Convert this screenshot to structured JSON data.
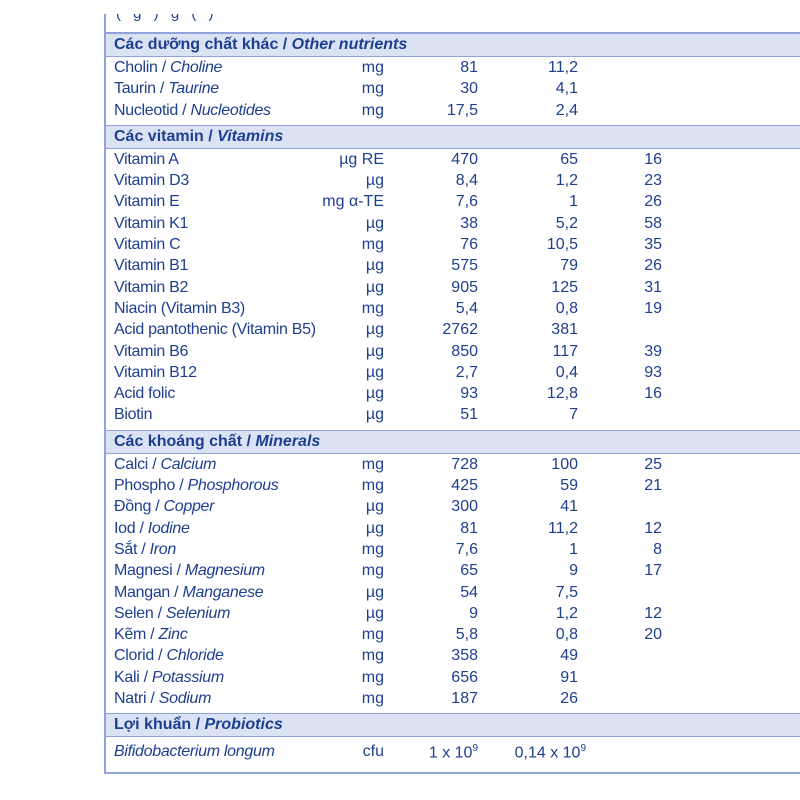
{
  "sections": {
    "other": {
      "title_vi": "Các dưỡng chất khác / ",
      "title_en": "Other nutrients",
      "rows": [
        {
          "vi": "Cholin / ",
          "en": "Choline",
          "unit": "mg",
          "v1": "81",
          "v2": "11,2",
          "v3": ""
        },
        {
          "vi": "Taurin / ",
          "en": "Taurine",
          "unit": "mg",
          "v1": "30",
          "v2": "4,1",
          "v3": ""
        },
        {
          "vi": "Nucleotid / ",
          "en": "Nucleotides",
          "unit": "mg",
          "v1": "17,5",
          "v2": "2,4",
          "v3": ""
        }
      ]
    },
    "vitamins": {
      "title_vi": "Các vitamin / ",
      "title_en": "Vitamins",
      "rows": [
        {
          "vi": "Vitamin A",
          "en": "",
          "unit": "µg RE",
          "v1": "470",
          "v2": "65",
          "v3": "16"
        },
        {
          "vi": "Vitamin D3",
          "en": "",
          "unit": "µg",
          "v1": "8,4",
          "v2": "1,2",
          "v3": "23"
        },
        {
          "vi": "Vitamin E",
          "en": "",
          "unit": "mg α-TE",
          "v1": "7,6",
          "v2": "1",
          "v3": "26"
        },
        {
          "vi": "Vitamin K1",
          "en": "",
          "unit": "µg",
          "v1": "38",
          "v2": "5,2",
          "v3": "58"
        },
        {
          "vi": "Vitamin C",
          "en": "",
          "unit": "mg",
          "v1": "76",
          "v2": "10,5",
          "v3": "35"
        },
        {
          "vi": "Vitamin B1",
          "en": "",
          "unit": "µg",
          "v1": "575",
          "v2": "79",
          "v3": "26"
        },
        {
          "vi": "Vitamin B2",
          "en": "",
          "unit": "µg",
          "v1": "905",
          "v2": "125",
          "v3": "31"
        },
        {
          "vi": "Niacin (Vitamin B3)",
          "en": "",
          "unit": "mg",
          "v1": "5,4",
          "v2": "0,8",
          "v3": "19"
        },
        {
          "vi": "Acid pantothenic (Vitamin B5)",
          "en": "",
          "unit": "µg",
          "v1": "2762",
          "v2": "381",
          "v3": ""
        },
        {
          "vi": "Vitamin B6",
          "en": "",
          "unit": "µg",
          "v1": "850",
          "v2": "117",
          "v3": "39"
        },
        {
          "vi": "Vitamin B12",
          "en": "",
          "unit": "µg",
          "v1": "2,7",
          "v2": "0,4",
          "v3": "93"
        },
        {
          "vi": "Acid folic",
          "en": "",
          "unit": "µg",
          "v1": "93",
          "v2": "12,8",
          "v3": "16"
        },
        {
          "vi": "Biotin",
          "en": "",
          "unit": "µg",
          "v1": "51",
          "v2": "7",
          "v3": ""
        }
      ]
    },
    "minerals": {
      "title_vi": "Các khoáng chất / ",
      "title_en": "Minerals",
      "rows": [
        {
          "vi": "Calci / ",
          "en": "Calcium",
          "unit": "mg",
          "v1": "728",
          "v2": "100",
          "v3": "25"
        },
        {
          "vi": "Phospho / ",
          "en": "Phosphorous",
          "unit": "mg",
          "v1": "425",
          "v2": "59",
          "v3": "21"
        },
        {
          "vi": "Đồng / ",
          "en": "Copper",
          "unit": "µg",
          "v1": "300",
          "v2": "41",
          "v3": ""
        },
        {
          "vi": "Iod / ",
          "en": "Iodine",
          "unit": "µg",
          "v1": "81",
          "v2": "11,2",
          "v3": "12"
        },
        {
          "vi": "Sắt / ",
          "en": "Iron",
          "unit": "mg",
          "v1": "7,6",
          "v2": "1",
          "v3": "8"
        },
        {
          "vi": "Magnesi / ",
          "en": "Magnesium",
          "unit": "mg",
          "v1": "65",
          "v2": "9",
          "v3": "17"
        },
        {
          "vi": "Mangan / ",
          "en": "Manganese",
          "unit": "µg",
          "v1": "54",
          "v2": "7,5",
          "v3": ""
        },
        {
          "vi": "Selen / ",
          "en": "Selenium",
          "unit": "µg",
          "v1": "9",
          "v2": "1,2",
          "v3": "12"
        },
        {
          "vi": "Kẽm / ",
          "en": "Zinc",
          "unit": "mg",
          "v1": "5,8",
          "v2": "0,8",
          "v3": "20"
        },
        {
          "vi": "Clorid / ",
          "en": "Chloride",
          "unit": "mg",
          "v1": "358",
          "v2": "49",
          "v3": ""
        },
        {
          "vi": "Kali / ",
          "en": "Potassium",
          "unit": "mg",
          "v1": "656",
          "v2": "91",
          "v3": ""
        },
        {
          "vi": "Natri / ",
          "en": "Sodium",
          "unit": "mg",
          "v1": "187",
          "v2": "26",
          "v3": ""
        }
      ]
    },
    "probiotics": {
      "title_vi": "Lợi khuẩn / ",
      "title_en": "Probiotics",
      "row": {
        "name": "Bifidobacterium longum",
        "unit": "cfu",
        "v1_base": "1 x 10",
        "v1_exp": "9",
        "v2_base": "0,14 x 10",
        "v2_exp": "9"
      }
    }
  }
}
